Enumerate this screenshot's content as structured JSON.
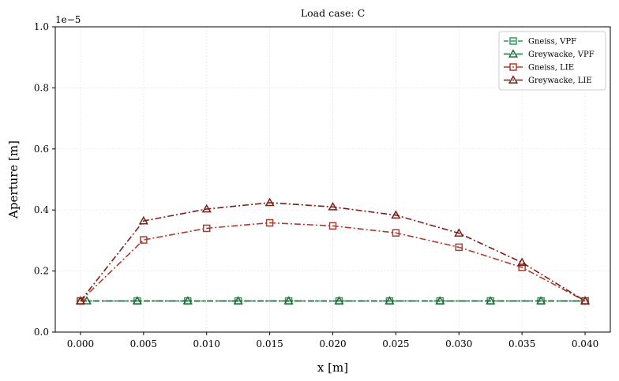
{
  "chart_data": {
    "type": "line",
    "title": "Load case: C",
    "xlabel": "x [m]",
    "ylabel": "Aperture [m]",
    "y_offset_label": "1e−5",
    "y_scale": 1e-05,
    "xlim": [
      -0.002,
      0.042
    ],
    "ylim": [
      0,
      1.0
    ],
    "xticks": [
      0.0,
      0.005,
      0.01,
      0.015,
      0.02,
      0.025,
      0.03,
      0.035,
      0.04
    ],
    "xtick_labels": [
      "0.000",
      "0.005",
      "0.010",
      "0.015",
      "0.020",
      "0.025",
      "0.030",
      "0.035",
      "0.040"
    ],
    "yticks": [
      0.0,
      0.2,
      0.4,
      0.6,
      0.8,
      1.0
    ],
    "ytick_labels": [
      "0.0",
      "0.2",
      "0.4",
      "0.6",
      "0.8",
      "1.0"
    ],
    "grid": true,
    "legend_position": "top-right",
    "series": [
      {
        "name": "Gneiss, VPF",
        "color": "#2e9e5b",
        "marker": "square",
        "dash": "dashed",
        "x": [
          0.0,
          0.0045,
          0.0085,
          0.0125,
          0.0165,
          0.0205,
          0.0245,
          0.0285,
          0.0325,
          0.0365,
          0.04
        ],
        "y": [
          0.102,
          0.102,
          0.102,
          0.102,
          0.102,
          0.102,
          0.102,
          0.102,
          0.102,
          0.102,
          0.102
        ]
      },
      {
        "name": "Greywacke, VPF",
        "color": "#1a6b35",
        "marker": "triangle",
        "dash": "dashdot",
        "x": [
          0.0,
          0.0005,
          0.0045,
          0.0085,
          0.0125,
          0.0165,
          0.0205,
          0.0245,
          0.0285,
          0.0325,
          0.0365,
          0.04
        ],
        "y": [
          0.102,
          0.102,
          0.102,
          0.102,
          0.102,
          0.102,
          0.102,
          0.102,
          0.102,
          0.102,
          0.102,
          0.102
        ]
      },
      {
        "name": "Gneiss, LIE",
        "color": "#b03a2e",
        "marker": "square",
        "dash": "dashdot",
        "x": [
          0.0,
          0.005,
          0.01,
          0.015,
          0.02,
          0.025,
          0.03,
          0.035,
          0.04
        ],
        "y": [
          0.102,
          0.302,
          0.34,
          0.358,
          0.348,
          0.325,
          0.278,
          0.212,
          0.102
        ]
      },
      {
        "name": "Greywacke, LIE",
        "color": "#7b1f16",
        "marker": "triangle",
        "dash": "dashdot",
        "x": [
          0.0,
          0.005,
          0.01,
          0.015,
          0.02,
          0.025,
          0.03,
          0.035,
          0.04
        ],
        "y": [
          0.102,
          0.364,
          0.403,
          0.424,
          0.41,
          0.383,
          0.324,
          0.228,
          0.102
        ]
      }
    ]
  }
}
